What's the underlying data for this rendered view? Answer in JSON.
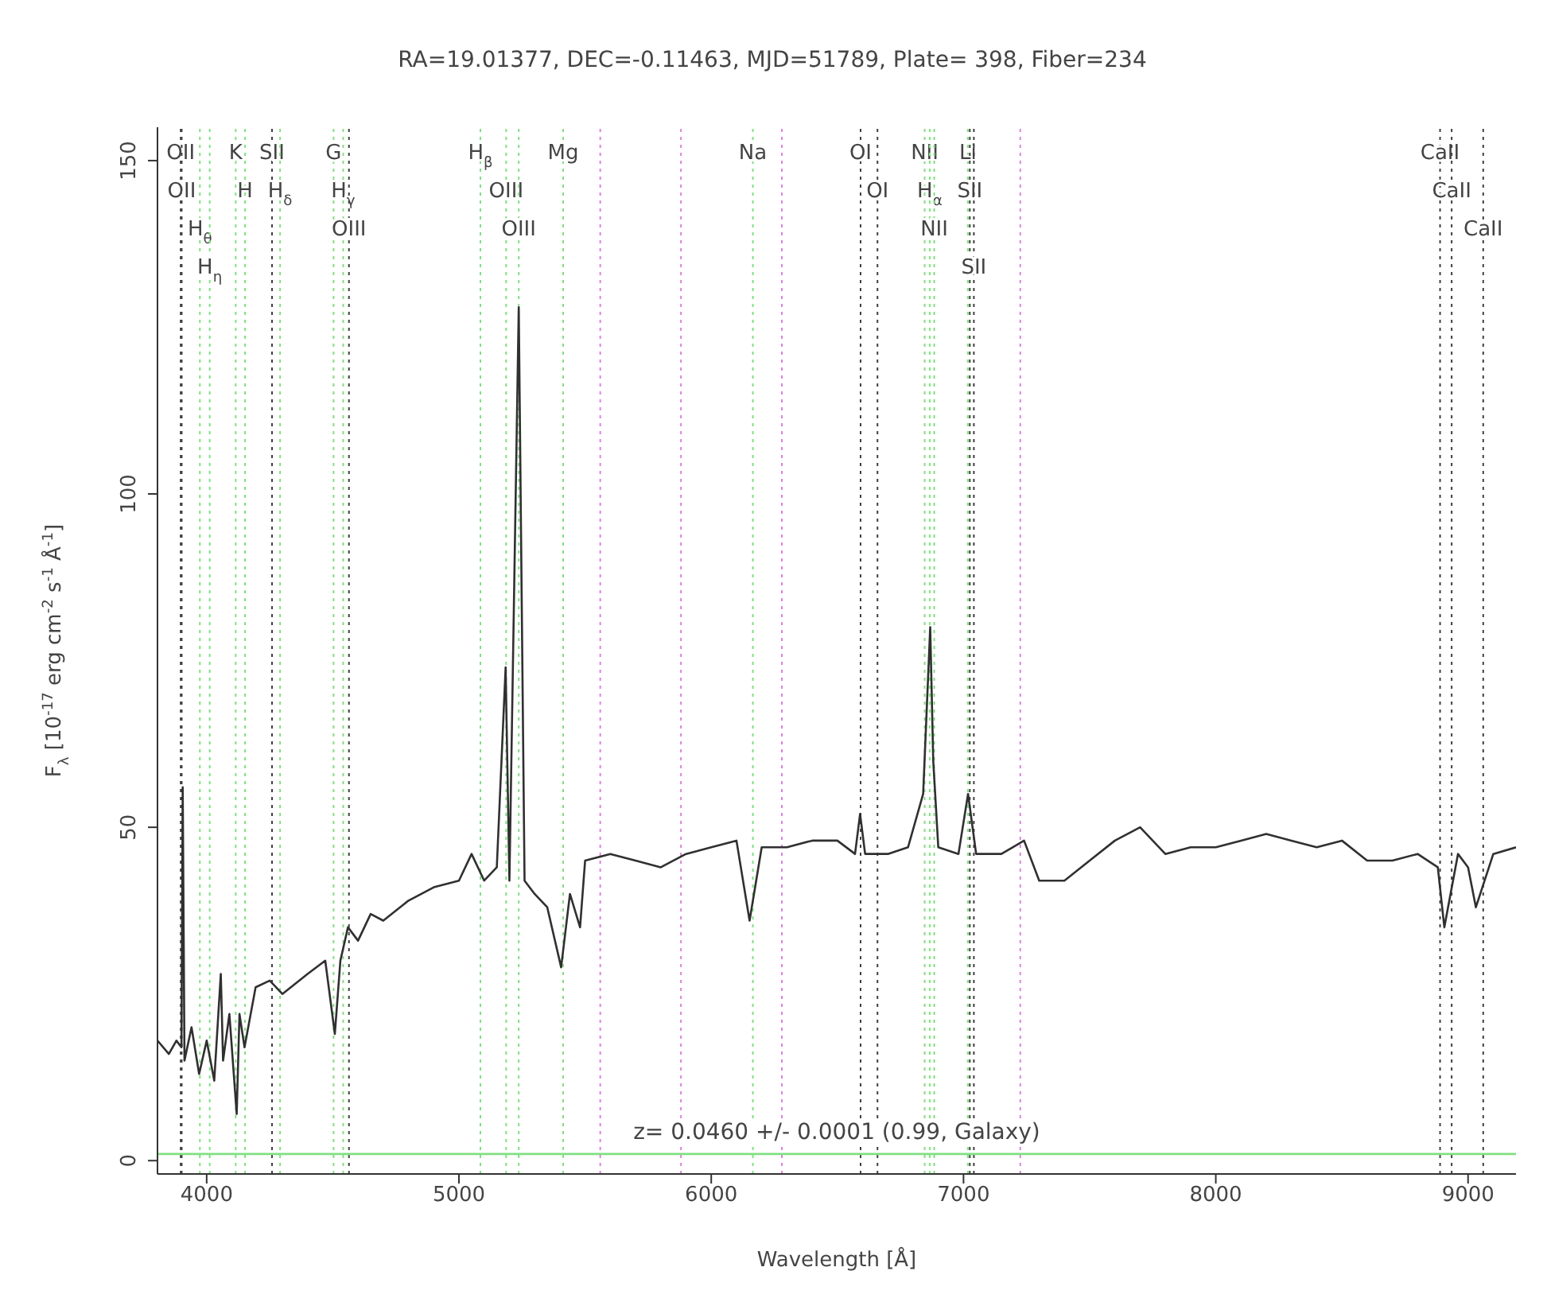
{
  "chart_data": {
    "type": "line",
    "title": "RA=19.01377, DEC=-0.11463, MJD=51789, Plate= 398, Fiber=234",
    "xlabel": "Wavelength [Å]",
    "ylabel": "F$_{λ}$ [10$^{-17}$ erg cm$^{-2}$ s$^{-1}$ Å$^{-1}$]",
    "xlim": [
      3805,
      9190
    ],
    "xticks": [
      4000,
      5000,
      6000,
      7000,
      8000,
      9000
    ],
    "ylim": [
      -2,
      155
    ],
    "yticks": [
      0,
      50,
      100,
      150
    ],
    "marker": "none",
    "line_style": "solid",
    "series": [
      {
        "color": "#303030",
        "x": [
          3805,
          3850,
          3880,
          3900,
          3905,
          3912,
          3940,
          3970,
          4000,
          4030,
          4056,
          4065,
          4090,
          4119,
          4130,
          4150,
          4194,
          4250,
          4300,
          4400,
          4470,
          4508,
          4530,
          4560,
          4600,
          4650,
          4700,
          4800,
          4900,
          5000,
          5050,
          5100,
          5150,
          5185,
          5200,
          5237,
          5260,
          5300,
          5350,
          5405,
          5440,
          5480,
          5500,
          5600,
          5700,
          5800,
          5900,
          6000,
          6100,
          6152,
          6200,
          6300,
          6400,
          6500,
          6570,
          6590,
          6610,
          6700,
          6780,
          6840,
          6868,
          6880,
          6900,
          6980,
          7018,
          7050,
          7150,
          7240,
          7300,
          7400,
          7500,
          7600,
          7700,
          7800,
          7900,
          8000,
          8100,
          8200,
          8300,
          8400,
          8500,
          8600,
          8700,
          8800,
          8880,
          8906,
          8960,
          9000,
          9031,
          9100,
          9190
        ],
        "values": [
          18,
          16,
          18,
          17,
          56,
          15,
          20,
          13,
          18,
          12,
          28,
          15,
          22,
          7,
          22,
          17,
          26,
          27,
          25,
          28,
          30,
          19,
          30,
          35,
          33,
          37,
          36,
          39,
          41,
          42,
          46,
          42,
          44,
          74,
          42,
          128,
          42,
          40,
          38,
          29,
          40,
          35,
          45,
          46,
          45,
          44,
          46,
          47,
          48,
          36,
          47,
          47,
          48,
          48,
          46,
          52,
          46,
          46,
          47,
          55,
          80,
          60,
          47,
          46,
          55,
          46,
          46,
          48,
          42,
          42,
          45,
          48,
          50,
          46,
          47,
          47,
          48,
          49,
          48,
          47,
          48,
          45,
          45,
          46,
          44,
          35,
          46,
          44,
          38,
          46,
          47
        ]
      },
      {
        "color": "#80e080",
        "x": [
          3805,
          5000,
          6000,
          7000,
          8000,
          9190
        ],
        "values": [
          1,
          1,
          1,
          1,
          1,
          1
        ]
      }
    ],
    "ref_lines": [
      {
        "axis": "x",
        "value": 3897,
        "label": "OII",
        "color": "#404040",
        "line_style": "dotted"
      },
      {
        "axis": "x",
        "value": 3901,
        "label": "OII",
        "color": "#404040",
        "line_style": "dotted"
      },
      {
        "axis": "x",
        "value": 3973,
        "label": "H$_{θ}$",
        "color": "#80e080",
        "line_style": "dotted"
      },
      {
        "axis": "x",
        "value": 4012,
        "label": "H$_{η}$",
        "color": "#80e080",
        "line_style": "dotted"
      },
      {
        "axis": "x",
        "value": 4115,
        "label": "K",
        "color": "#80e080",
        "line_style": "dotted"
      },
      {
        "axis": "x",
        "value": 4152,
        "label": "H",
        "color": "#80e080",
        "line_style": "dotted"
      },
      {
        "axis": "x",
        "value": 4259,
        "label": "SII",
        "color": "#404040",
        "line_style": "dotted"
      },
      {
        "axis": "x",
        "value": 4291,
        "label": "H$_{δ}$",
        "color": "#80e080",
        "line_style": "dotted"
      },
      {
        "axis": "x",
        "value": 4503,
        "label": "G",
        "color": "#80e080",
        "line_style": "dotted"
      },
      {
        "axis": "x",
        "value": 4541,
        "label": "H$_{γ}$",
        "color": "#80e080",
        "line_style": "dotted"
      },
      {
        "axis": "x",
        "value": 4564,
        "label": "OIII",
        "color": "#404040",
        "line_style": "dotted"
      },
      {
        "axis": "x",
        "value": 5085,
        "label": "H$_{β}$",
        "color": "#80e080",
        "line_style": "dotted"
      },
      {
        "axis": "x",
        "value": 5187,
        "label": "OIII",
        "color": "#80e080",
        "line_style": "dotted"
      },
      {
        "axis": "x",
        "value": 5237,
        "label": "OIII",
        "color": "#80e080",
        "line_style": "dotted"
      },
      {
        "axis": "x",
        "value": 5413,
        "label": "Mg",
        "color": "#80e080",
        "line_style": "dotted"
      },
      {
        "axis": "x",
        "value": 5560,
        "color": "#e080e0",
        "line_style": "dotted"
      },
      {
        "axis": "x",
        "value": 5880,
        "color": "#e080e0",
        "line_style": "dotted"
      },
      {
        "axis": "x",
        "value": 6165,
        "label": "Na",
        "color": "#80e080",
        "line_style": "dotted"
      },
      {
        "axis": "x",
        "value": 6280,
        "color": "#e080e0",
        "line_style": "dotted"
      },
      {
        "axis": "x",
        "value": 6592,
        "label": "OI",
        "color": "#404040",
        "line_style": "dotted"
      },
      {
        "axis": "x",
        "value": 6659,
        "label": "OI",
        "color": "#404040",
        "line_style": "dotted"
      },
      {
        "axis": "x",
        "value": 6846,
        "label": "NII",
        "color": "#80e080",
        "line_style": "dotted"
      },
      {
        "axis": "x",
        "value": 6866,
        "label": "H$_{α}$",
        "color": "#80e080",
        "line_style": "dotted"
      },
      {
        "axis": "x",
        "value": 6884,
        "label": "NII",
        "color": "#80e080",
        "line_style": "dotted"
      },
      {
        "axis": "x",
        "value": 7017,
        "label": "Li",
        "color": "#80e080",
        "line_style": "dotted"
      },
      {
        "axis": "x",
        "value": 7025,
        "label": "SII",
        "color": "#404040",
        "line_style": "dotted"
      },
      {
        "axis": "x",
        "value": 7041,
        "label": "SII",
        "color": "#404040",
        "line_style": "dotted"
      },
      {
        "axis": "x",
        "value": 7225,
        "color": "#e080e0",
        "line_style": "dotted"
      },
      {
        "axis": "x",
        "value": 8889,
        "label": "CaII",
        "color": "#404040",
        "line_style": "dotted"
      },
      {
        "axis": "x",
        "value": 8935,
        "label": "CaII",
        "color": "#404040",
        "line_style": "dotted"
      },
      {
        "axis": "x",
        "value": 9060,
        "label": "CaII",
        "color": "#404040",
        "line_style": "dotted"
      }
    ],
    "annotations": [
      "z= 0.0460 +/- 0.0001 (0.99, Galaxy)"
    ]
  }
}
